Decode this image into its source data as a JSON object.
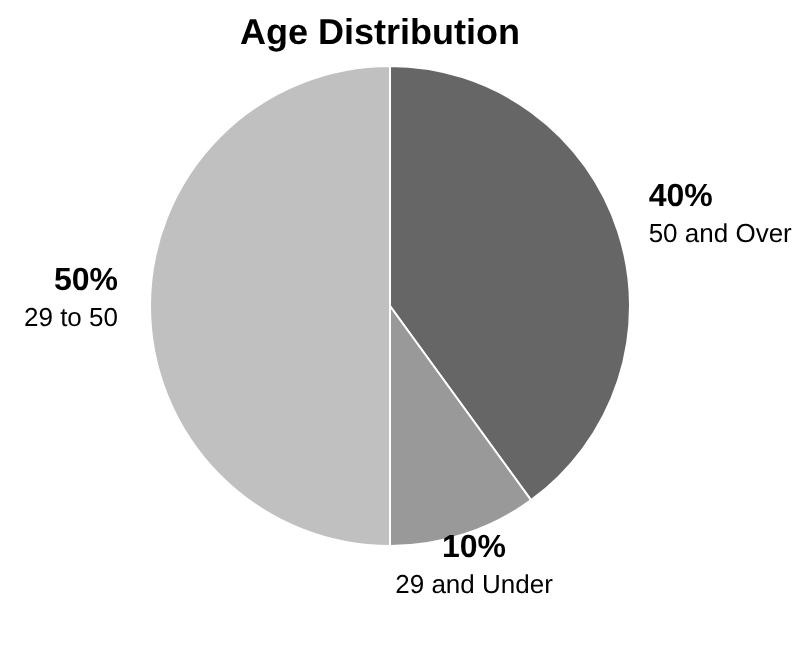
{
  "chart_data": {
    "type": "pie",
    "title": "Age Distribution",
    "categories": [
      "50 and Over",
      "29 and Under",
      "29 to 50"
    ],
    "values": [
      40,
      10,
      50
    ],
    "value_labels": [
      "40%",
      "10%",
      "50%"
    ],
    "colors": [
      "#666666",
      "#999999",
      "#c0c0c0"
    ]
  }
}
